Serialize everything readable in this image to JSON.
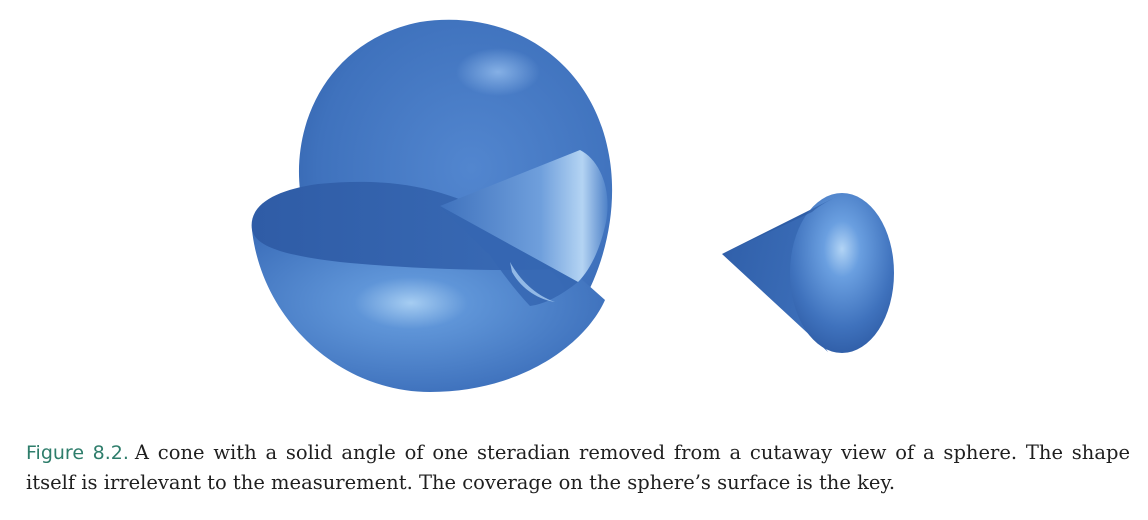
{
  "figure": {
    "label": "Figure 8.2.",
    "caption": "A cone with a solid angle of one steradian removed from a cutaway view of a sphere. The shape itself is irrelevant to the measurement. The coverage on the sphere’s surface is the key.",
    "colors": {
      "shape_base": "#3f72bd",
      "shape_dark": "#2d5aa3",
      "shape_highlight": "#9ec6ef",
      "label": "#2e7d6b"
    }
  }
}
